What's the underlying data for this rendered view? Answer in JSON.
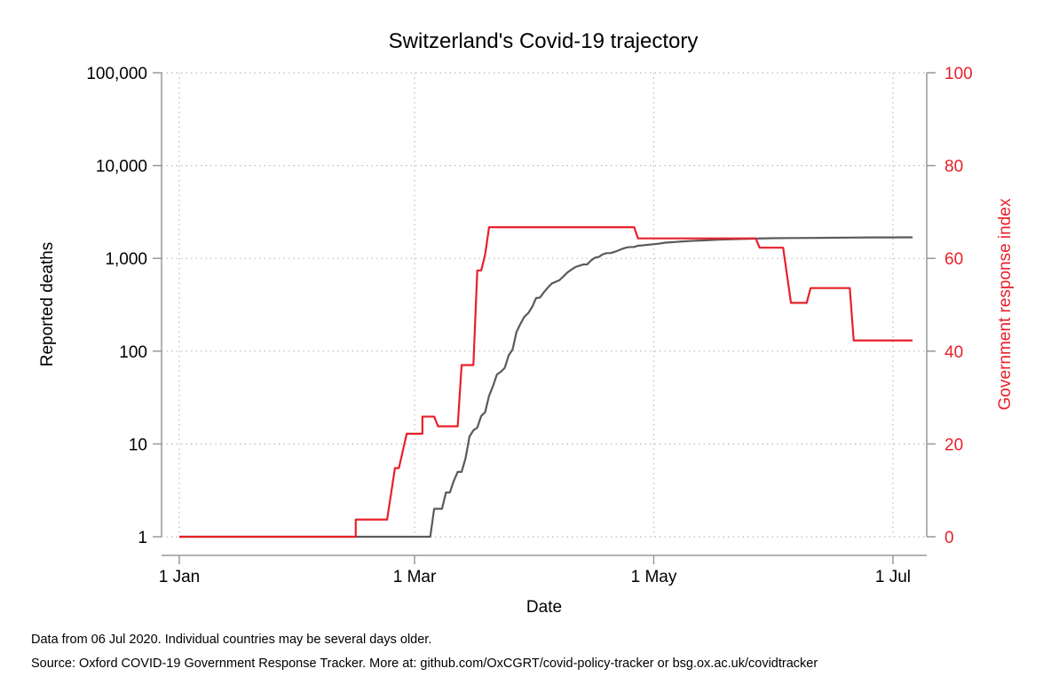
{
  "chart_data": {
    "type": "line",
    "title": "Switzerland's Covid-19 trajectory",
    "xlabel": "Date",
    "ylabel": "Reported deaths",
    "y2label": "Government response index",
    "x_ticks": [
      {
        "label": "1 Jan",
        "date": "2020-01-01"
      },
      {
        "label": "1 Mar",
        "date": "2020-03-01"
      },
      {
        "label": "1 May",
        "date": "2020-05-01"
      },
      {
        "label": "1 Jul",
        "date": "2020-07-01"
      }
    ],
    "y_ticks": [
      {
        "label": "1",
        "value": 1
      },
      {
        "label": "10",
        "value": 10
      },
      {
        "label": "100",
        "value": 100
      },
      {
        "label": "1,000",
        "value": 1000
      },
      {
        "label": "10,000",
        "value": 10000
      },
      {
        "label": "100,000",
        "value": 100000
      }
    ],
    "y2_ticks": [
      {
        "label": "0",
        "value": 0
      },
      {
        "label": "20",
        "value": 20
      },
      {
        "label": "40",
        "value": 40
      },
      {
        "label": "60",
        "value": 60
      },
      {
        "label": "80",
        "value": 80
      },
      {
        "label": "100",
        "value": 100
      }
    ],
    "xlim": [
      "2020-01-01",
      "2020-07-06"
    ],
    "ylim": [
      1,
      100000
    ],
    "y_scale": "log",
    "y2lim": [
      0,
      100
    ],
    "grid": true,
    "colors": {
      "deaths": "#5a5a5a",
      "response": "#e8202a",
      "axis": "#999999",
      "grid": "#bbbbbb"
    },
    "series": [
      {
        "axis": "left",
        "color": "#5a5a5a",
        "points": [
          [
            "2020-01-01",
            1
          ],
          [
            "2020-03-05",
            1
          ],
          [
            "2020-03-06",
            2
          ],
          [
            "2020-03-08",
            2
          ],
          [
            "2020-03-09",
            3
          ],
          [
            "2020-03-10",
            3
          ],
          [
            "2020-03-11",
            4
          ],
          [
            "2020-03-12",
            5
          ],
          [
            "2020-03-13",
            5
          ],
          [
            "2020-03-14",
            7
          ],
          [
            "2020-03-15",
            12
          ],
          [
            "2020-03-16",
            14
          ],
          [
            "2020-03-17",
            15
          ],
          [
            "2020-03-18",
            20
          ],
          [
            "2020-03-19",
            22
          ],
          [
            "2020-03-20",
            33
          ],
          [
            "2020-03-21",
            42
          ],
          [
            "2020-03-22",
            56
          ],
          [
            "2020-03-23",
            60
          ],
          [
            "2020-03-24",
            66
          ],
          [
            "2020-03-25",
            90
          ],
          [
            "2020-03-26",
            104
          ],
          [
            "2020-03-27",
            161
          ],
          [
            "2020-03-28",
            197
          ],
          [
            "2020-03-29",
            235
          ],
          [
            "2020-03-30",
            257
          ],
          [
            "2020-03-31",
            300
          ],
          [
            "2020-04-01",
            373
          ],
          [
            "2020-04-02",
            378
          ],
          [
            "2020-04-03",
            432
          ],
          [
            "2020-04-04",
            484
          ],
          [
            "2020-04-05",
            536
          ],
          [
            "2020-04-06",
            559
          ],
          [
            "2020-04-07",
            584
          ],
          [
            "2020-04-08",
            641
          ],
          [
            "2020-04-09",
            705
          ],
          [
            "2020-04-10",
            756
          ],
          [
            "2020-04-11",
            806
          ],
          [
            "2020-04-12",
            831
          ],
          [
            "2020-04-13",
            858
          ],
          [
            "2020-04-14",
            860
          ],
          [
            "2020-04-15",
            948
          ],
          [
            "2020-04-16",
            1017
          ],
          [
            "2020-04-17",
            1036
          ],
          [
            "2020-04-18",
            1106
          ],
          [
            "2020-04-19",
            1138
          ],
          [
            "2020-04-20",
            1141
          ],
          [
            "2020-04-21",
            1174
          ],
          [
            "2020-04-22",
            1217
          ],
          [
            "2020-04-23",
            1268
          ],
          [
            "2020-04-24",
            1307
          ],
          [
            "2020-04-25",
            1325
          ],
          [
            "2020-04-26",
            1327
          ],
          [
            "2020-04-27",
            1368
          ],
          [
            "2020-04-28",
            1378
          ],
          [
            "2020-04-30",
            1408
          ],
          [
            "2020-05-02",
            1435
          ],
          [
            "2020-05-04",
            1476
          ],
          [
            "2020-05-06",
            1497
          ],
          [
            "2020-05-08",
            1517
          ],
          [
            "2020-05-10",
            1537
          ],
          [
            "2020-05-14",
            1564
          ],
          [
            "2020-05-18",
            1593
          ],
          [
            "2020-05-22",
            1610
          ],
          [
            "2020-05-26",
            1631
          ],
          [
            "2020-05-31",
            1649
          ],
          [
            "2020-06-05",
            1656
          ],
          [
            "2020-06-10",
            1660
          ],
          [
            "2020-06-15",
            1666
          ],
          [
            "2020-06-20",
            1674
          ],
          [
            "2020-06-25",
            1680
          ],
          [
            "2020-06-30",
            1681
          ],
          [
            "2020-07-06",
            1686
          ]
        ]
      },
      {
        "axis": "right",
        "color": "#e8202a",
        "points": [
          [
            "2020-01-01",
            0
          ],
          [
            "2020-02-15",
            0
          ],
          [
            "2020-02-15",
            3.7
          ],
          [
            "2020-02-23",
            3.7
          ],
          [
            "2020-02-25",
            14.8
          ],
          [
            "2020-02-26",
            14.8
          ],
          [
            "2020-02-28",
            22.2
          ],
          [
            "2020-03-03",
            22.2
          ],
          [
            "2020-03-03",
            25.9
          ],
          [
            "2020-03-06",
            25.9
          ],
          [
            "2020-03-07",
            23.8
          ],
          [
            "2020-03-12",
            23.8
          ],
          [
            "2020-03-13",
            37.0
          ],
          [
            "2020-03-16",
            37.0
          ],
          [
            "2020-03-17",
            57.4
          ],
          [
            "2020-03-18",
            57.4
          ],
          [
            "2020-03-19",
            60.8
          ],
          [
            "2020-03-20",
            66.7
          ],
          [
            "2020-04-26",
            66.7
          ],
          [
            "2020-04-27",
            64.3
          ],
          [
            "2020-05-27",
            64.3
          ],
          [
            "2020-05-28",
            62.3
          ],
          [
            "2020-06-03",
            62.3
          ],
          [
            "2020-06-05",
            50.4
          ],
          [
            "2020-06-09",
            50.4
          ],
          [
            "2020-06-10",
            53.6
          ],
          [
            "2020-06-20",
            53.6
          ],
          [
            "2020-06-21",
            42.3
          ],
          [
            "2020-07-06",
            42.3
          ]
        ]
      }
    ]
  },
  "footnotes": {
    "line1": "Data from 06 Jul 2020. Individual countries may be several days older.",
    "line2": "Source: Oxford COVID-19 Government Response Tracker. More at: github.com/OxCGRT/covid-policy-tracker or bsg.ox.ac.uk/covidtracker"
  }
}
